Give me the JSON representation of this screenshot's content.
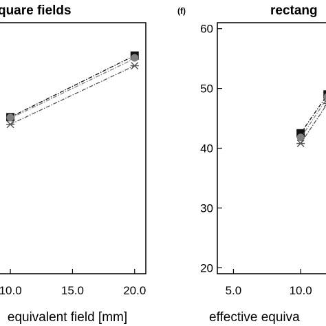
{
  "chart_data": [
    {
      "type": "line",
      "panel": "",
      "title": "square fields",
      "xlabel": "equivalent field [mm]",
      "ylabel": "",
      "x_ticks": [
        "10.0",
        "15.0",
        "20.0"
      ],
      "y_ticks": [],
      "xlim": [
        8.5,
        20.9
      ],
      "ylim": [
        19.0,
        61.0
      ],
      "grid": false,
      "x": [
        10.0,
        20.0
      ],
      "series": [
        {
          "values": [
            45.2,
            55.5
          ],
          "marker": "square",
          "color": "#111111",
          "dash": "dash-dot"
        },
        {
          "values": [
            45.0,
            55.0
          ],
          "marker": "circle",
          "color": "#808080",
          "dash": "dash-dot"
        },
        {
          "values": [
            44.0,
            53.8
          ],
          "marker": "star",
          "color": "#555555",
          "dash": "dash-dot"
        }
      ]
    },
    {
      "type": "line",
      "panel": "(f)",
      "title": "rectang",
      "xlabel": "effective equiva",
      "ylabel": "",
      "x_ticks": [
        "5.0",
        "10.0"
      ],
      "y_ticks": [
        "20",
        "30",
        "40",
        "50",
        "60"
      ],
      "xlim": [
        3.8,
        12.5
      ],
      "ylim": [
        19.0,
        61.0
      ],
      "grid": false,
      "x": [
        10.0,
        12.0
      ],
      "series": [
        {
          "values": [
            42.5,
            49.0
          ],
          "marker": "square",
          "color": "#111111",
          "dash": "dash-dot"
        },
        {
          "values": [
            41.7,
            48.5
          ],
          "marker": "circle",
          "color": "#808080",
          "dash": "dash-dot"
        },
        {
          "values": [
            40.8,
            47.5
          ],
          "marker": "star",
          "color": "#555555",
          "dash": "dash-dot"
        }
      ]
    }
  ]
}
